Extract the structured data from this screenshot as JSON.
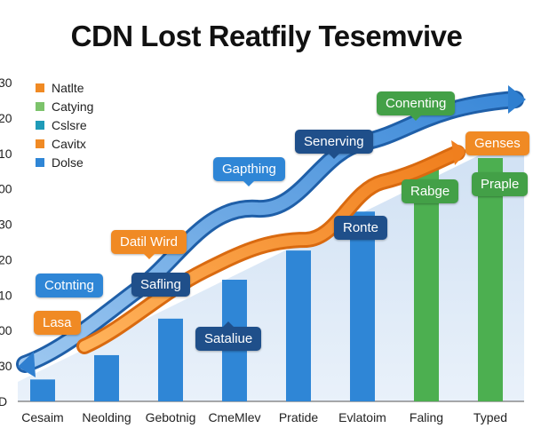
{
  "chart_data": {
    "type": "bar",
    "title": "CDN Lost Reatfily Tesemvive",
    "y_ticks": [
      "30",
      "20",
      "10",
      "00",
      "30",
      "20",
      "10",
      "00",
      "30",
      "D"
    ],
    "categories": [
      "Cesaim",
      "Neolding",
      "Gebotnig",
      "CmeMlev",
      "Pratide",
      "Evlatoim",
      "Faling",
      "Typed"
    ],
    "bar_heights": [
      0.09,
      0.19,
      0.34,
      0.5,
      0.62,
      0.78,
      0.97,
      1.0
    ],
    "bar_colors": [
      "#2f86d6",
      "#2f86d6",
      "#2f86d6",
      "#2f86d6",
      "#2f86d6",
      "#2f86d6",
      "#4caf50",
      "#4caf50"
    ],
    "legend": [
      {
        "label": "Natlte",
        "color": "#f08a24"
      },
      {
        "label": "Catying",
        "color": "#7cc36b"
      },
      {
        "label": "Cslsre",
        "color": "#1f9bb8"
      },
      {
        "label": "Cavitx",
        "color": "#f08a24"
      },
      {
        "label": "Dolse",
        "color": "#2f86d6"
      }
    ],
    "annotations": [
      {
        "text": "Conenting",
        "color": "#43a047"
      },
      {
        "text": "Genses",
        "color": "#f08a24"
      },
      {
        "text": "Senerving",
        "color": "#1f4f8a"
      },
      {
        "text": "Gapthing",
        "color": "#2f86d6"
      },
      {
        "text": "Ronte",
        "color": "#1f4f8a"
      },
      {
        "text": "Rabge",
        "color": "#43a047"
      },
      {
        "text": "Praple",
        "color": "#43a047"
      },
      {
        "text": "Datil Wird",
        "color": "#f08a24"
      },
      {
        "text": "Cotnting",
        "color": "#2f86d6"
      },
      {
        "text": "Safling",
        "color": "#1f4f8a"
      },
      {
        "text": "Lasa",
        "color": "#f08a24"
      },
      {
        "text": "Sataliue",
        "color": "#1f4f8a"
      }
    ]
  }
}
